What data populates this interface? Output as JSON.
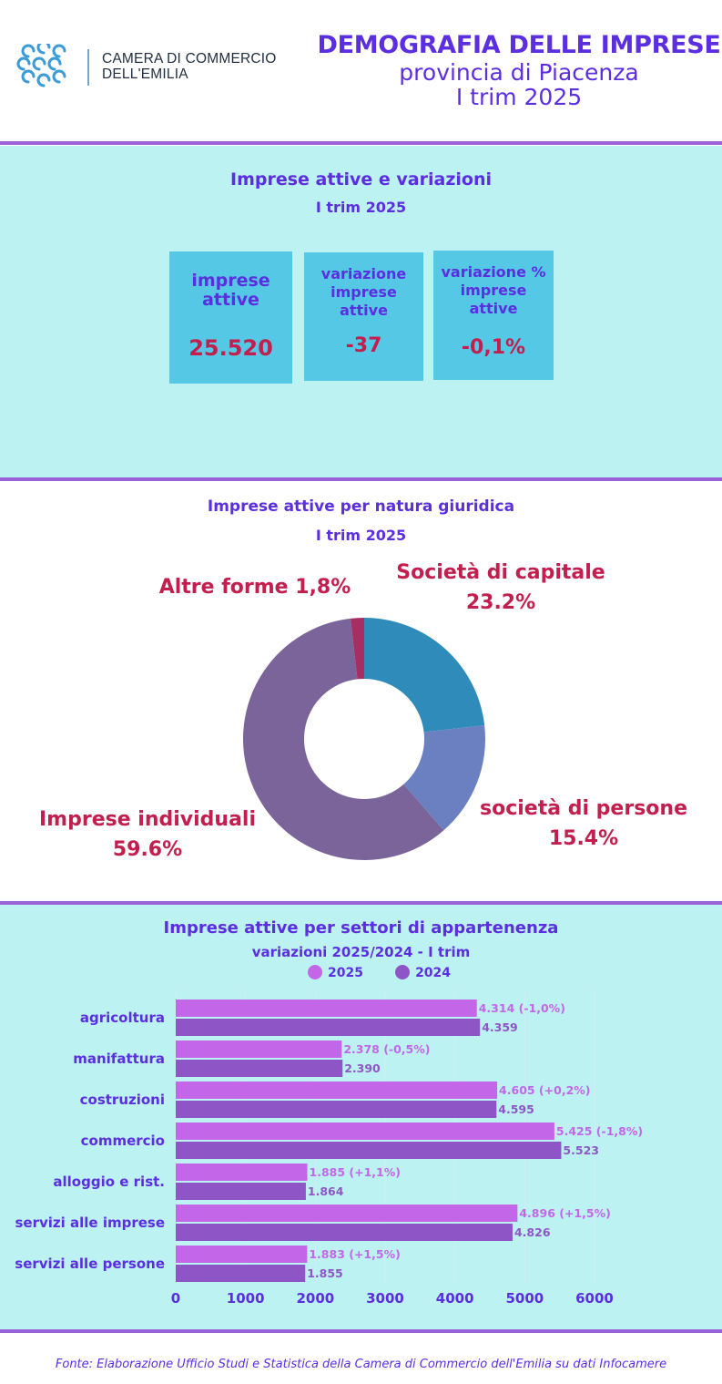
{
  "header": {
    "org_line1": "CAMERA DI COMMERCIO",
    "org_line2": "DELL'EMILIA",
    "title_line1": "DEMOGRAFIA DELLE IMPRESE",
    "title_line2": "provincia di Piacenza",
    "title_line3": "I trim 2025"
  },
  "kpi_section": {
    "title": "Imprese attive e variazioni",
    "subtitle": "I trim 2025",
    "cards": [
      {
        "label": "imprese attive",
        "value": "25.520"
      },
      {
        "label": "variazione imprese attive",
        "value": "-37"
      },
      {
        "label": "variazione % imprese attive",
        "value": "-0,1%"
      }
    ]
  },
  "natura_section": {
    "title": "Imprese attive per natura giuridica",
    "subtitle": "I trim 2025"
  },
  "settori_section": {
    "title": "Imprese attive per settori di appartenenza",
    "subtitle": "variazioni 2025/2024 - I trim"
  },
  "footer": "Fonte: Elaborazione Ufficio Studi e Statistica della Camera di Commercio dell'Emilia su dati Infocamere",
  "colors": {
    "accent": "#5b2ee0",
    "value_red": "#c21e4e",
    "band_bg": "#bdf2f2",
    "card_bg": "#55c8e6",
    "rule": "#9a62d6"
  },
  "chart_data": [
    {
      "type": "pie",
      "donut": true,
      "slices": [
        {
          "name": "Società di capitale",
          "label": "Società di capitale",
          "pct_label": "23.2%",
          "value": 23.2,
          "color": "#2e8bba"
        },
        {
          "name": "società di persone",
          "label": "società di persone",
          "pct_label": "15.4%",
          "value": 15.4,
          "color": "#6b80c0"
        },
        {
          "name": "Imprese individuali",
          "label": "Imprese individuali",
          "pct_label": "59.6%",
          "value": 59.6,
          "color": "#7a6499"
        },
        {
          "name": "Altre forme",
          "label": "Altre forme 1,8%",
          "pct_label": "",
          "value": 1.8,
          "color": "#a62e62"
        }
      ]
    },
    {
      "type": "bar",
      "orientation": "horizontal",
      "categories": [
        "agricoltura",
        "manifattura",
        "costruzioni",
        "commercio",
        "alloggio e rist.",
        "servizi alle imprese",
        "servizi alle persone"
      ],
      "series": [
        {
          "name": "2025",
          "color": "#c466e8",
          "values": [
            4314,
            2378,
            4605,
            5425,
            1885,
            4896,
            1883
          ],
          "labels": [
            "4.314 (-1,0%)",
            "2.378 (-0,5%)",
            "4.605 (+0,2%)",
            "5.425 (-1,8%)",
            "1.885 (+1,1%)",
            "4.896 (+1,5%)",
            "1.883 (+1,5%)"
          ]
        },
        {
          "name": "2024",
          "color": "#8e55c6",
          "values": [
            4359,
            2390,
            4595,
            5523,
            1864,
            4826,
            1855
          ],
          "labels": [
            "4.359",
            "2.390",
            "4.595",
            "5.523",
            "1.864",
            "4.826",
            "1.855"
          ]
        }
      ],
      "xlim": [
        0,
        6000
      ],
      "xticks": [
        "0",
        "1000",
        "2000",
        "3000",
        "4000",
        "5000",
        "6000"
      ],
      "grid": true,
      "legend": "top"
    }
  ]
}
